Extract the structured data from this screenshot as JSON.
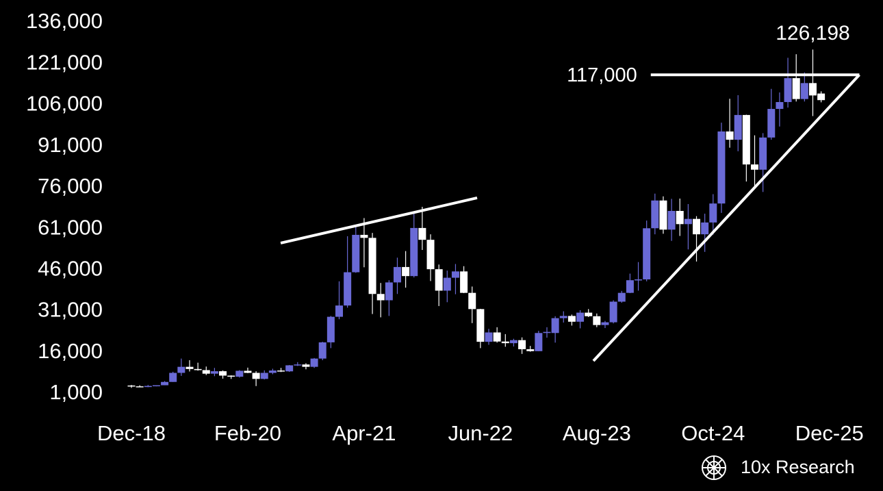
{
  "chart_data": {
    "type": "candlestick",
    "categories": [
      "Dec-18",
      null,
      null,
      null,
      null,
      null,
      null,
      null,
      null,
      null,
      null,
      null,
      null,
      null,
      "Feb-20",
      null,
      null,
      null,
      null,
      null,
      null,
      null,
      null,
      null,
      null,
      null,
      null,
      null,
      "Apr-21",
      null,
      null,
      null,
      null,
      null,
      null,
      null,
      null,
      null,
      null,
      null,
      null,
      null,
      "Jun-22",
      null,
      null,
      null,
      null,
      null,
      null,
      null,
      null,
      null,
      null,
      null,
      null,
      null,
      "Aug-23",
      null,
      null,
      null,
      null,
      null,
      null,
      null,
      null,
      null,
      null,
      null,
      null,
      null,
      "Oct-24",
      null,
      null,
      null,
      null,
      null,
      null,
      null,
      null,
      null,
      null,
      null,
      null,
      null,
      "Dec-25"
    ],
    "open": [
      4000,
      3700,
      3450,
      3850,
      4100,
      5300,
      8600,
      10800,
      10000,
      9600,
      8300,
      9200,
      7600,
      7200,
      9350,
      8600,
      6400,
      8600,
      9450,
      9150,
      11350,
      11650,
      10800,
      13800,
      19700,
      29000,
      33100,
      45200,
      58800,
      57700,
      37300,
      35000,
      41500,
      47100,
      43800,
      61300,
      57000,
      46300,
      38500,
      43200,
      45500,
      37700,
      31800,
      19900,
      23300,
      20000,
      19400,
      20500,
      17200,
      16500,
      23100,
      23100,
      28500,
      29300,
      27200,
      30500,
      29200,
      26000,
      27000,
      34500,
      37700,
      42300,
      42600,
      61200,
      71300,
      60700,
      67500,
      62700,
      64600,
      59000,
      63300,
      70200,
      96400,
      93400,
      102400,
      84400,
      82500,
      94200,
      104600,
      107100,
      115800,
      108200,
      114000,
      110200,
      null
    ],
    "high": [
      4200,
      4100,
      4200,
      4100,
      5600,
      9000,
      13800,
      13200,
      12300,
      10900,
      10400,
      9500,
      7700,
      9600,
      10500,
      9200,
      9500,
      10100,
      10400,
      11450,
      12500,
      12100,
      14000,
      19900,
      29300,
      41900,
      58300,
      61800,
      64900,
      59500,
      41300,
      42300,
      50500,
      52900,
      67000,
      69000,
      59000,
      48000,
      45800,
      48200,
      47400,
      40000,
      31900,
      24600,
      25200,
      22700,
      21000,
      21500,
      18400,
      23900,
      25200,
      29200,
      31000,
      29800,
      31400,
      31800,
      30200,
      27500,
      35000,
      38400,
      44700,
      48900,
      64000,
      73800,
      72800,
      71900,
      72000,
      70000,
      65600,
      66500,
      73600,
      99600,
      108300,
      109600,
      102500,
      95000,
      95800,
      111900,
      110600,
      123200,
      124500,
      117900,
      126198,
      111000,
      null
    ],
    "low": [
      3150,
      3400,
      3400,
      3700,
      4100,
      5300,
      7500,
      9100,
      9400,
      7800,
      7400,
      6500,
      6400,
      6900,
      8500,
      3800,
      6200,
      8100,
      8900,
      8950,
      11100,
      9900,
      10400,
      13200,
      17600,
      28100,
      32300,
      45000,
      47000,
      30000,
      28800,
      29300,
      37300,
      39600,
      43300,
      53300,
      42000,
      32900,
      34300,
      37200,
      37600,
      26700,
      17600,
      18800,
      19600,
      18100,
      18200,
      15500,
      16300,
      16500,
      21400,
      19600,
      26900,
      25800,
      24800,
      28900,
      25200,
      24900,
      26600,
      34100,
      37600,
      38500,
      41900,
      59000,
      59200,
      56600,
      58400,
      53500,
      49100,
      52600,
      58900,
      66800,
      90500,
      89200,
      78200,
      76600,
      74400,
      93400,
      98200,
      105100,
      107300,
      107300,
      102000,
      107000,
      null
    ],
    "close": [
      3700,
      3450,
      3850,
      4100,
      5300,
      8600,
      10800,
      10000,
      9600,
      8300,
      9200,
      7600,
      7200,
      9350,
      8600,
      6400,
      8600,
      9450,
      9150,
      11350,
      11650,
      10800,
      13800,
      19700,
      29000,
      33100,
      45200,
      58800,
      57700,
      37300,
      35000,
      41500,
      47100,
      43800,
      61300,
      57000,
      46300,
      38500,
      43200,
      45500,
      37700,
      31800,
      19900,
      23300,
      20000,
      19400,
      20500,
      17200,
      16500,
      23100,
      23500,
      28500,
      29300,
      27200,
      30500,
      29200,
      26000,
      27000,
      34500,
      37700,
      42300,
      42600,
      61200,
      71300,
      60700,
      67500,
      62700,
      64600,
      59000,
      63300,
      70200,
      96400,
      93400,
      102400,
      84400,
      82500,
      94200,
      104600,
      107100,
      115800,
      108200,
      114000,
      109500,
      107800,
      null
    ],
    "up_color": "#6a6ad6",
    "down_color": "#ffffff",
    "ylim": [
      1000,
      136000
    ],
    "yticks": [
      {
        "value": 1000,
        "label": "1,000"
      },
      {
        "value": 16000,
        "label": "16,000"
      },
      {
        "value": 31000,
        "label": "31,000"
      },
      {
        "value": 46000,
        "label": "46,000"
      },
      {
        "value": 61000,
        "label": "61,000"
      },
      {
        "value": 76000,
        "label": "76,000"
      },
      {
        "value": 91000,
        "label": "91,000"
      },
      {
        "value": 106000,
        "label": "106,000"
      },
      {
        "value": 121000,
        "label": "121,000"
      },
      {
        "value": 136000,
        "label": "136,000"
      }
    ],
    "trendlines": [
      {
        "x": [
          17.96,
          41.6
        ],
        "y": [
          55800,
          72240
        ]
      },
      {
        "x": [
          55.6,
          87.6
        ],
        "y": [
          12960,
          117000
        ]
      }
    ],
    "level": {
      "value": 117000,
      "label": "117,000",
      "x": [
        62.5,
        87.6
      ]
    },
    "peak": {
      "value": 126198,
      "label": "126,198",
      "x": 82
    },
    "logo": "10x Research"
  }
}
